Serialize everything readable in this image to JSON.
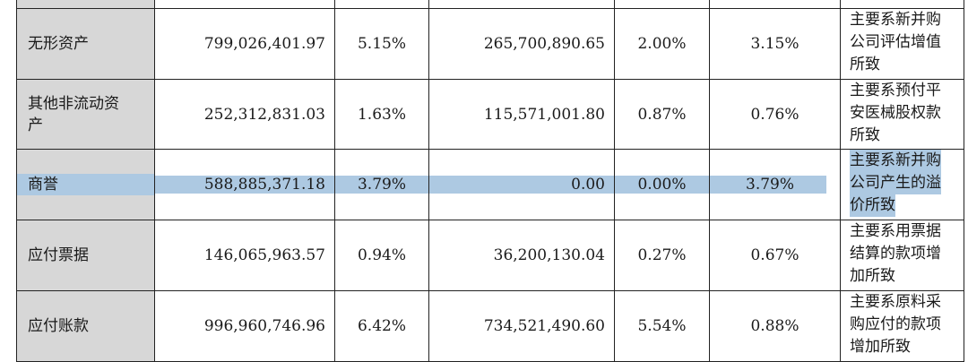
{
  "top_fragment": "所致",
  "rows": [
    {
      "item": "无形资产",
      "amount_current": "799,026,401.97",
      "ratio_current": "5.15%",
      "amount_prior": "265,700,890.65",
      "ratio_prior": "2.00%",
      "ratio_change": "3.15%",
      "note_lines": [
        "主要系新并购",
        "公司评估增值",
        "所致"
      ]
    },
    {
      "item_lines": [
        "其他非流动资",
        "产"
      ],
      "amount_current": "252,312,831.03",
      "ratio_current": "1.63%",
      "amount_prior": "115,571,001.80",
      "ratio_prior": "0.87%",
      "ratio_change": "0.76%",
      "note_lines": [
        "主要系预付平",
        "安医械股权款",
        "所致"
      ]
    },
    {
      "item": "商誉",
      "amount_current": "588,885,371.18",
      "ratio_current": "3.79%",
      "amount_prior": "0.00",
      "ratio_prior": "0.00%",
      "ratio_change": "3.79%",
      "note_lines": [
        "主要系新并购",
        "公司产生的溢",
        "价所致"
      ],
      "highlight_color": "#adc9e2"
    },
    {
      "item": "应付票据",
      "amount_current": "146,065,963.57",
      "ratio_current": "0.94%",
      "amount_prior": "36,200,130.04",
      "ratio_prior": "0.27%",
      "ratio_change": "0.67%",
      "note_lines": [
        "主要系用票据",
        "结算的款项增",
        "加所致"
      ]
    },
    {
      "item": "应付账款",
      "amount_current": "996,960,746.96",
      "ratio_current": "6.42%",
      "amount_prior": "734,521,490.60",
      "ratio_prior": "5.54%",
      "ratio_change": "0.88%",
      "note_lines": [
        "主要系原料采",
        "购应付的款项",
        "增加所致"
      ]
    }
  ]
}
